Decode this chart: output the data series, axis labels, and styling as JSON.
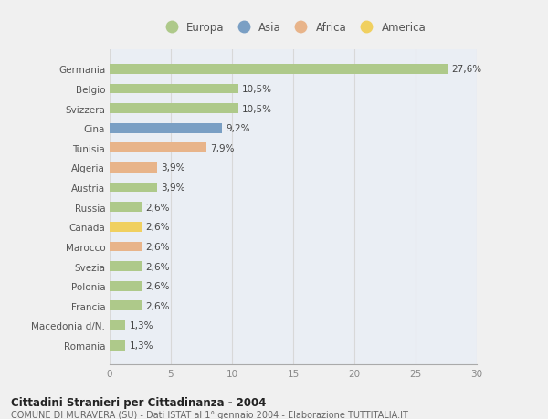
{
  "countries": [
    "Germania",
    "Belgio",
    "Svizzera",
    "Cina",
    "Tunisia",
    "Algeria",
    "Austria",
    "Russia",
    "Canada",
    "Marocco",
    "Svezia",
    "Polonia",
    "Francia",
    "Macedonia d/N.",
    "Romania"
  ],
  "values": [
    27.6,
    10.5,
    10.5,
    9.2,
    7.9,
    3.9,
    3.9,
    2.6,
    2.6,
    2.6,
    2.6,
    2.6,
    2.6,
    1.3,
    1.3
  ],
  "labels": [
    "27,6%",
    "10,5%",
    "10,5%",
    "9,2%",
    "7,9%",
    "3,9%",
    "3,9%",
    "2,6%",
    "2,6%",
    "2,6%",
    "2,6%",
    "2,6%",
    "2,6%",
    "1,3%",
    "1,3%"
  ],
  "continents": [
    "Europa",
    "Europa",
    "Europa",
    "Asia",
    "Africa",
    "Africa",
    "Europa",
    "Europa",
    "America",
    "Africa",
    "Europa",
    "Europa",
    "Europa",
    "Europa",
    "Europa"
  ],
  "colors": {
    "Europa": "#aec98a",
    "Asia": "#7a9fc4",
    "Africa": "#e8b48a",
    "America": "#f0d060"
  },
  "xlim": [
    0,
    30
  ],
  "xticks": [
    0,
    5,
    10,
    15,
    20,
    25,
    30
  ],
  "title_bold": "Cittadini Stranieri per Cittadinanza - 2004",
  "subtitle": "COMUNE DI MURAVERA (SU) - Dati ISTAT al 1° gennaio 2004 - Elaborazione TUTTITALIA.IT",
  "background_color": "#f0f0f0",
  "bar_background": "#eaeef4",
  "grid_color": "#d8d8d8",
  "text_color": "#555555",
  "label_color": "#444444"
}
